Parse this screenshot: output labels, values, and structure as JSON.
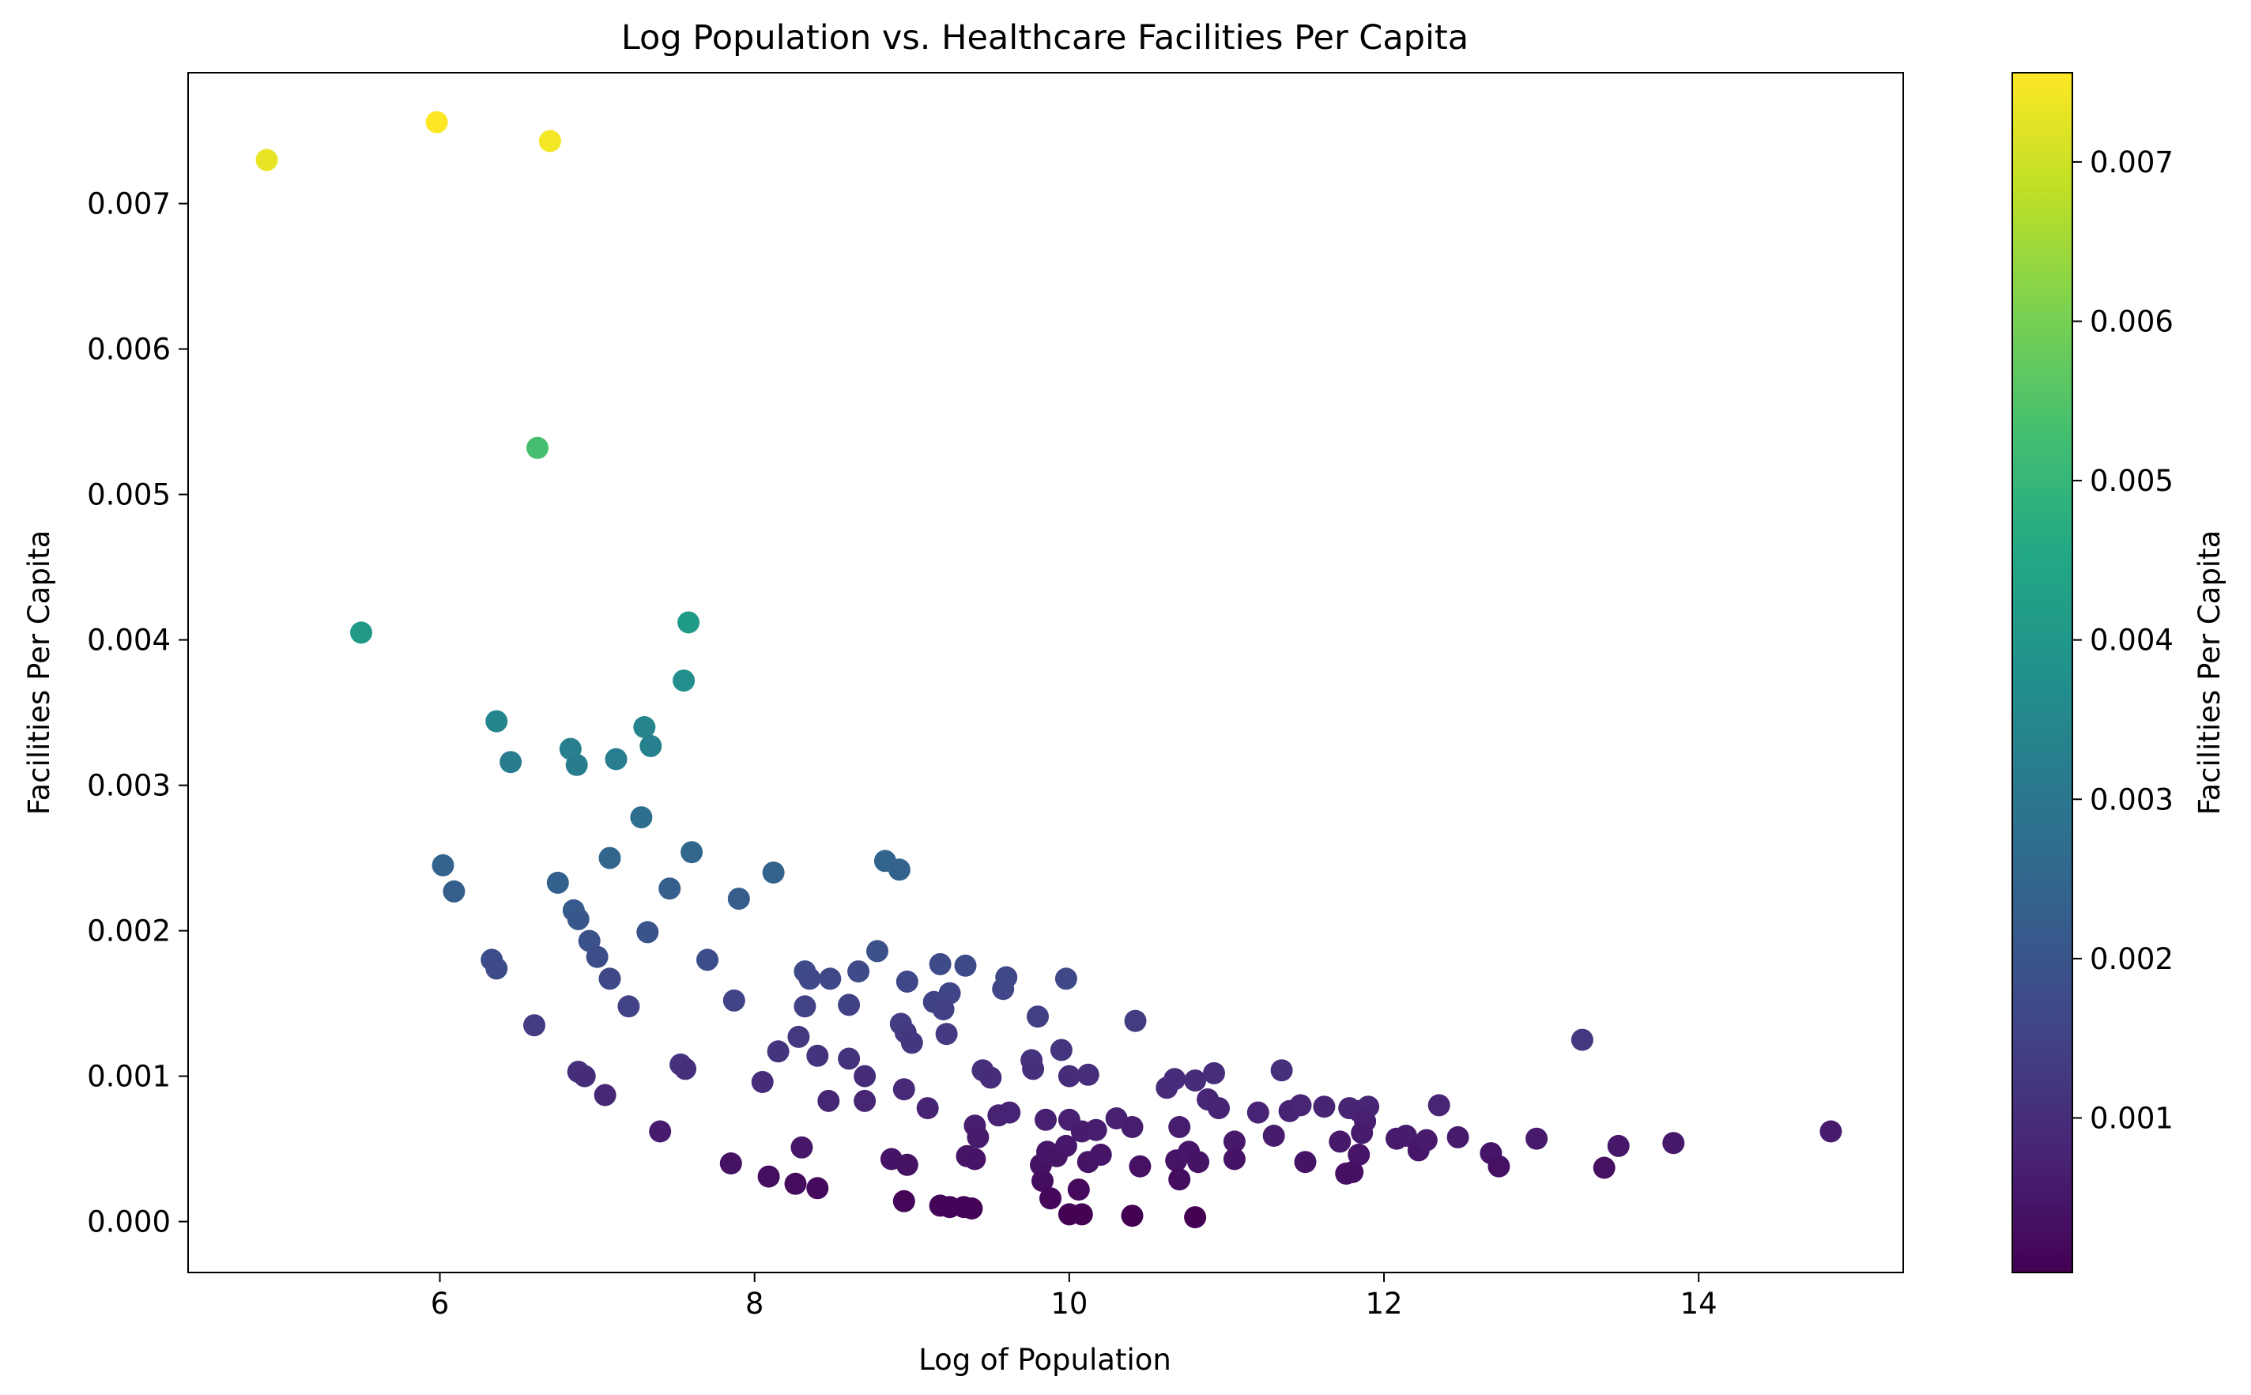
{
  "chart_data": {
    "type": "scatter",
    "title": "Log Population vs. Healthcare Facilities Per Capita",
    "xlabel": "Log of Population",
    "ylabel": "Facilities Per Capita",
    "xlim": [
      4.4,
      15.3
    ],
    "ylim": [
      -0.00035,
      0.0079
    ],
    "xticks": [
      6,
      8,
      10,
      12,
      14
    ],
    "yticks": [
      "0.000",
      "0.001",
      "0.002",
      "0.003",
      "0.004",
      "0.005",
      "0.006",
      "0.007"
    ],
    "grid": false,
    "legend": "none",
    "colormap": "viridis",
    "colorbar": {
      "label": "Facilities Per Capita",
      "range": [
        3e-05,
        0.00756
      ],
      "ticks": [
        "0.001",
        "0.002",
        "0.003",
        "0.004",
        "0.005",
        "0.006",
        "0.007"
      ]
    },
    "points": [
      [
        4.9,
        0.0073
      ],
      [
        5.98,
        0.00756
      ],
      [
        6.7,
        0.00743
      ],
      [
        6.62,
        0.00532
      ],
      [
        5.5,
        0.00405
      ],
      [
        7.58,
        0.00412
      ],
      [
        7.55,
        0.00372
      ],
      [
        6.36,
        0.00344
      ],
      [
        6.45,
        0.00316
      ],
      [
        6.83,
        0.00325
      ],
      [
        6.87,
        0.00314
      ],
      [
        7.12,
        0.00318
      ],
      [
        7.3,
        0.0034
      ],
      [
        7.34,
        0.00327
      ],
      [
        7.28,
        0.00278
      ],
      [
        6.02,
        0.00245
      ],
      [
        6.09,
        0.00227
      ],
      [
        6.75,
        0.00233
      ],
      [
        7.08,
        0.0025
      ],
      [
        7.46,
        0.00229
      ],
      [
        7.6,
        0.00254
      ],
      [
        7.9,
        0.00222
      ],
      [
        8.12,
        0.0024
      ],
      [
        8.83,
        0.00248
      ],
      [
        8.92,
        0.00242
      ],
      [
        6.85,
        0.00214
      ],
      [
        6.88,
        0.00208
      ],
      [
        6.95,
        0.00193
      ],
      [
        7.0,
        0.00182
      ],
      [
        7.32,
        0.00199
      ],
      [
        6.33,
        0.0018
      ],
      [
        6.36,
        0.00174
      ],
      [
        7.08,
        0.00167
      ],
      [
        7.2,
        0.00148
      ],
      [
        7.7,
        0.0018
      ],
      [
        7.87,
        0.00152
      ],
      [
        8.32,
        0.00172
      ],
      [
        8.35,
        0.00167
      ],
      [
        8.48,
        0.00167
      ],
      [
        8.32,
        0.00148
      ],
      [
        8.6,
        0.00149
      ],
      [
        8.66,
        0.00172
      ],
      [
        8.78,
        0.00186
      ],
      [
        8.97,
        0.00165
      ],
      [
        9.18,
        0.00177
      ],
      [
        9.34,
        0.00176
      ],
      [
        9.14,
        0.00151
      ],
      [
        9.24,
        0.00157
      ],
      [
        9.2,
        0.00146
      ],
      [
        9.58,
        0.0016
      ],
      [
        9.6,
        0.00168
      ],
      [
        9.98,
        0.00167
      ],
      [
        9.8,
        0.00141
      ],
      [
        6.6,
        0.00135
      ],
      [
        8.93,
        0.00136
      ],
      [
        8.96,
        0.0013
      ],
      [
        9.0,
        0.00123
      ],
      [
        9.22,
        0.00129
      ],
      [
        8.28,
        0.00127
      ],
      [
        8.15,
        0.00117
      ],
      [
        8.4,
        0.00114
      ],
      [
        8.6,
        0.00112
      ],
      [
        8.7,
        0.001
      ],
      [
        8.05,
        0.00096
      ],
      [
        6.88,
        0.00103
      ],
      [
        6.92,
        0.001
      ],
      [
        7.05,
        0.00087
      ],
      [
        7.53,
        0.00108
      ],
      [
        7.56,
        0.00105
      ],
      [
        7.4,
        0.00062
      ],
      [
        8.47,
        0.00083
      ],
      [
        8.7,
        0.00083
      ],
      [
        8.95,
        0.00091
      ],
      [
        9.1,
        0.00078
      ],
      [
        9.45,
        0.00104
      ],
      [
        9.5,
        0.00099
      ],
      [
        9.76,
        0.00111
      ],
      [
        9.77,
        0.00105
      ],
      [
        9.95,
        0.00118
      ],
      [
        10.0,
        0.001
      ],
      [
        10.12,
        0.00101
      ],
      [
        10.42,
        0.00138
      ],
      [
        9.4,
        0.00066
      ],
      [
        9.42,
        0.00058
      ],
      [
        9.55,
        0.00073
      ],
      [
        9.62,
        0.00075
      ],
      [
        9.85,
        0.0007
      ],
      [
        10.0,
        0.0007
      ],
      [
        10.08,
        0.00062
      ],
      [
        10.17,
        0.00063
      ],
      [
        10.3,
        0.00071
      ],
      [
        10.4,
        0.00065
      ],
      [
        10.62,
        0.00092
      ],
      [
        10.67,
        0.00098
      ],
      [
        10.8,
        0.00097
      ],
      [
        10.88,
        0.00084
      ],
      [
        10.92,
        0.00102
      ],
      [
        10.95,
        0.00078
      ],
      [
        10.7,
        0.00065
      ],
      [
        11.05,
        0.00055
      ],
      [
        11.2,
        0.00075
      ],
      [
        11.3,
        0.00059
      ],
      [
        11.35,
        0.00104
      ],
      [
        11.4,
        0.00076
      ],
      [
        11.47,
        0.0008
      ],
      [
        11.62,
        0.00079
      ],
      [
        11.78,
        0.00078
      ],
      [
        11.84,
        0.00076
      ],
      [
        11.9,
        0.00079
      ],
      [
        11.88,
        0.00069
      ],
      [
        11.86,
        0.00061
      ],
      [
        11.72,
        0.00055
      ],
      [
        12.08,
        0.00057
      ],
      [
        12.14,
        0.00059
      ],
      [
        12.22,
        0.00049
      ],
      [
        12.27,
        0.00056
      ],
      [
        12.35,
        0.0008
      ],
      [
        12.47,
        0.00058
      ],
      [
        12.68,
        0.00047
      ],
      [
        12.73,
        0.00038
      ],
      [
        12.97,
        0.00057
      ],
      [
        13.26,
        0.00125
      ],
      [
        13.4,
        0.00037
      ],
      [
        13.49,
        0.00052
      ],
      [
        13.84,
        0.00054
      ],
      [
        14.84,
        0.00062
      ],
      [
        7.85,
        0.0004
      ],
      [
        8.09,
        0.00031
      ],
      [
        8.26,
        0.00026
      ],
      [
        8.3,
        0.00051
      ],
      [
        8.4,
        0.00023
      ],
      [
        8.87,
        0.00043
      ],
      [
        8.97,
        0.00039
      ],
      [
        8.95,
        0.00014
      ],
      [
        9.18,
        0.00011
      ],
      [
        9.24,
        0.0001
      ],
      [
        9.33,
        0.0001
      ],
      [
        9.38,
        9e-05
      ],
      [
        9.35,
        0.00045
      ],
      [
        9.4,
        0.00043
      ],
      [
        9.82,
        0.00039
      ],
      [
        9.83,
        0.00028
      ],
      [
        9.88,
        0.00016
      ],
      [
        9.86,
        0.00048
      ],
      [
        9.92,
        0.00045
      ],
      [
        9.98,
        0.00052
      ],
      [
        10.0,
        5e-05
      ],
      [
        10.06,
        0.00022
      ],
      [
        10.08,
        5e-05
      ],
      [
        10.12,
        0.00041
      ],
      [
        10.2,
        0.00046
      ],
      [
        10.45,
        0.00038
      ],
      [
        10.4,
        4e-05
      ],
      [
        10.68,
        0.00042
      ],
      [
        10.7,
        0.00029
      ],
      [
        10.76,
        0.00048
      ],
      [
        10.82,
        0.00041
      ],
      [
        10.8,
        3e-05
      ],
      [
        11.05,
        0.00043
      ],
      [
        11.5,
        0.00041
      ],
      [
        11.76,
        0.00033
      ],
      [
        11.8,
        0.00034
      ],
      [
        11.84,
        0.00046
      ]
    ]
  }
}
